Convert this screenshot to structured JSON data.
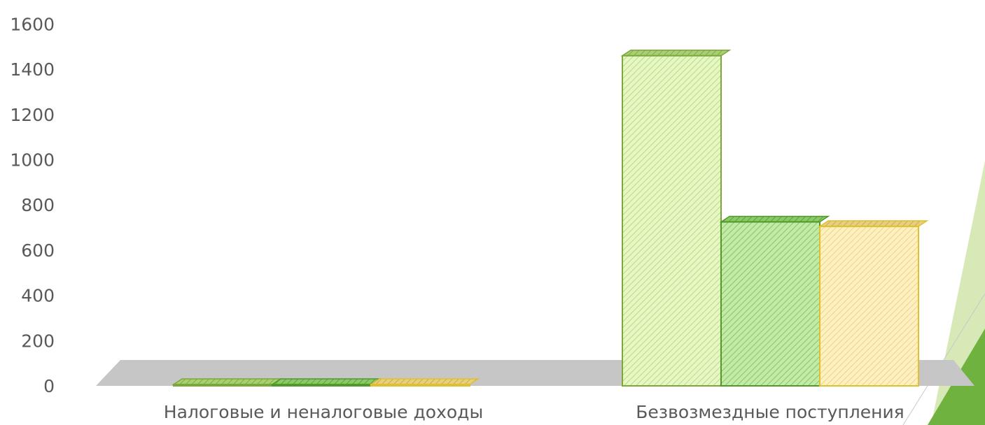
{
  "chart_data": {
    "type": "bar",
    "style": "3d-clustered-column",
    "categories": [
      "Налоговые и неналоговые доходы",
      "Безвозмездные поступления"
    ],
    "series": [
      {
        "values": [
          6,
          1460
        ],
        "color": "#d9f2a6"
      },
      {
        "values": [
          6,
          725
        ],
        "color": "#9fd77d"
      },
      {
        "values": [
          6,
          705
        ],
        "color": "#fbe7a1"
      }
    ],
    "y_ticks": [
      "0",
      "200",
      "400",
      "600",
      "800",
      "1000",
      "1200",
      "1400",
      "1600"
    ],
    "ylim": [
      0,
      1600
    ],
    "grid": false,
    "legend": "none"
  },
  "colors": {
    "floor": "#c6c6c6",
    "axis_text": "#595959",
    "edge_1": "#7aa83a",
    "edge_2": "#4e9a2a",
    "edge_3": "#e0c030",
    "decor_light": "#d8e9b8",
    "decor_dark": "#6fb23f"
  }
}
